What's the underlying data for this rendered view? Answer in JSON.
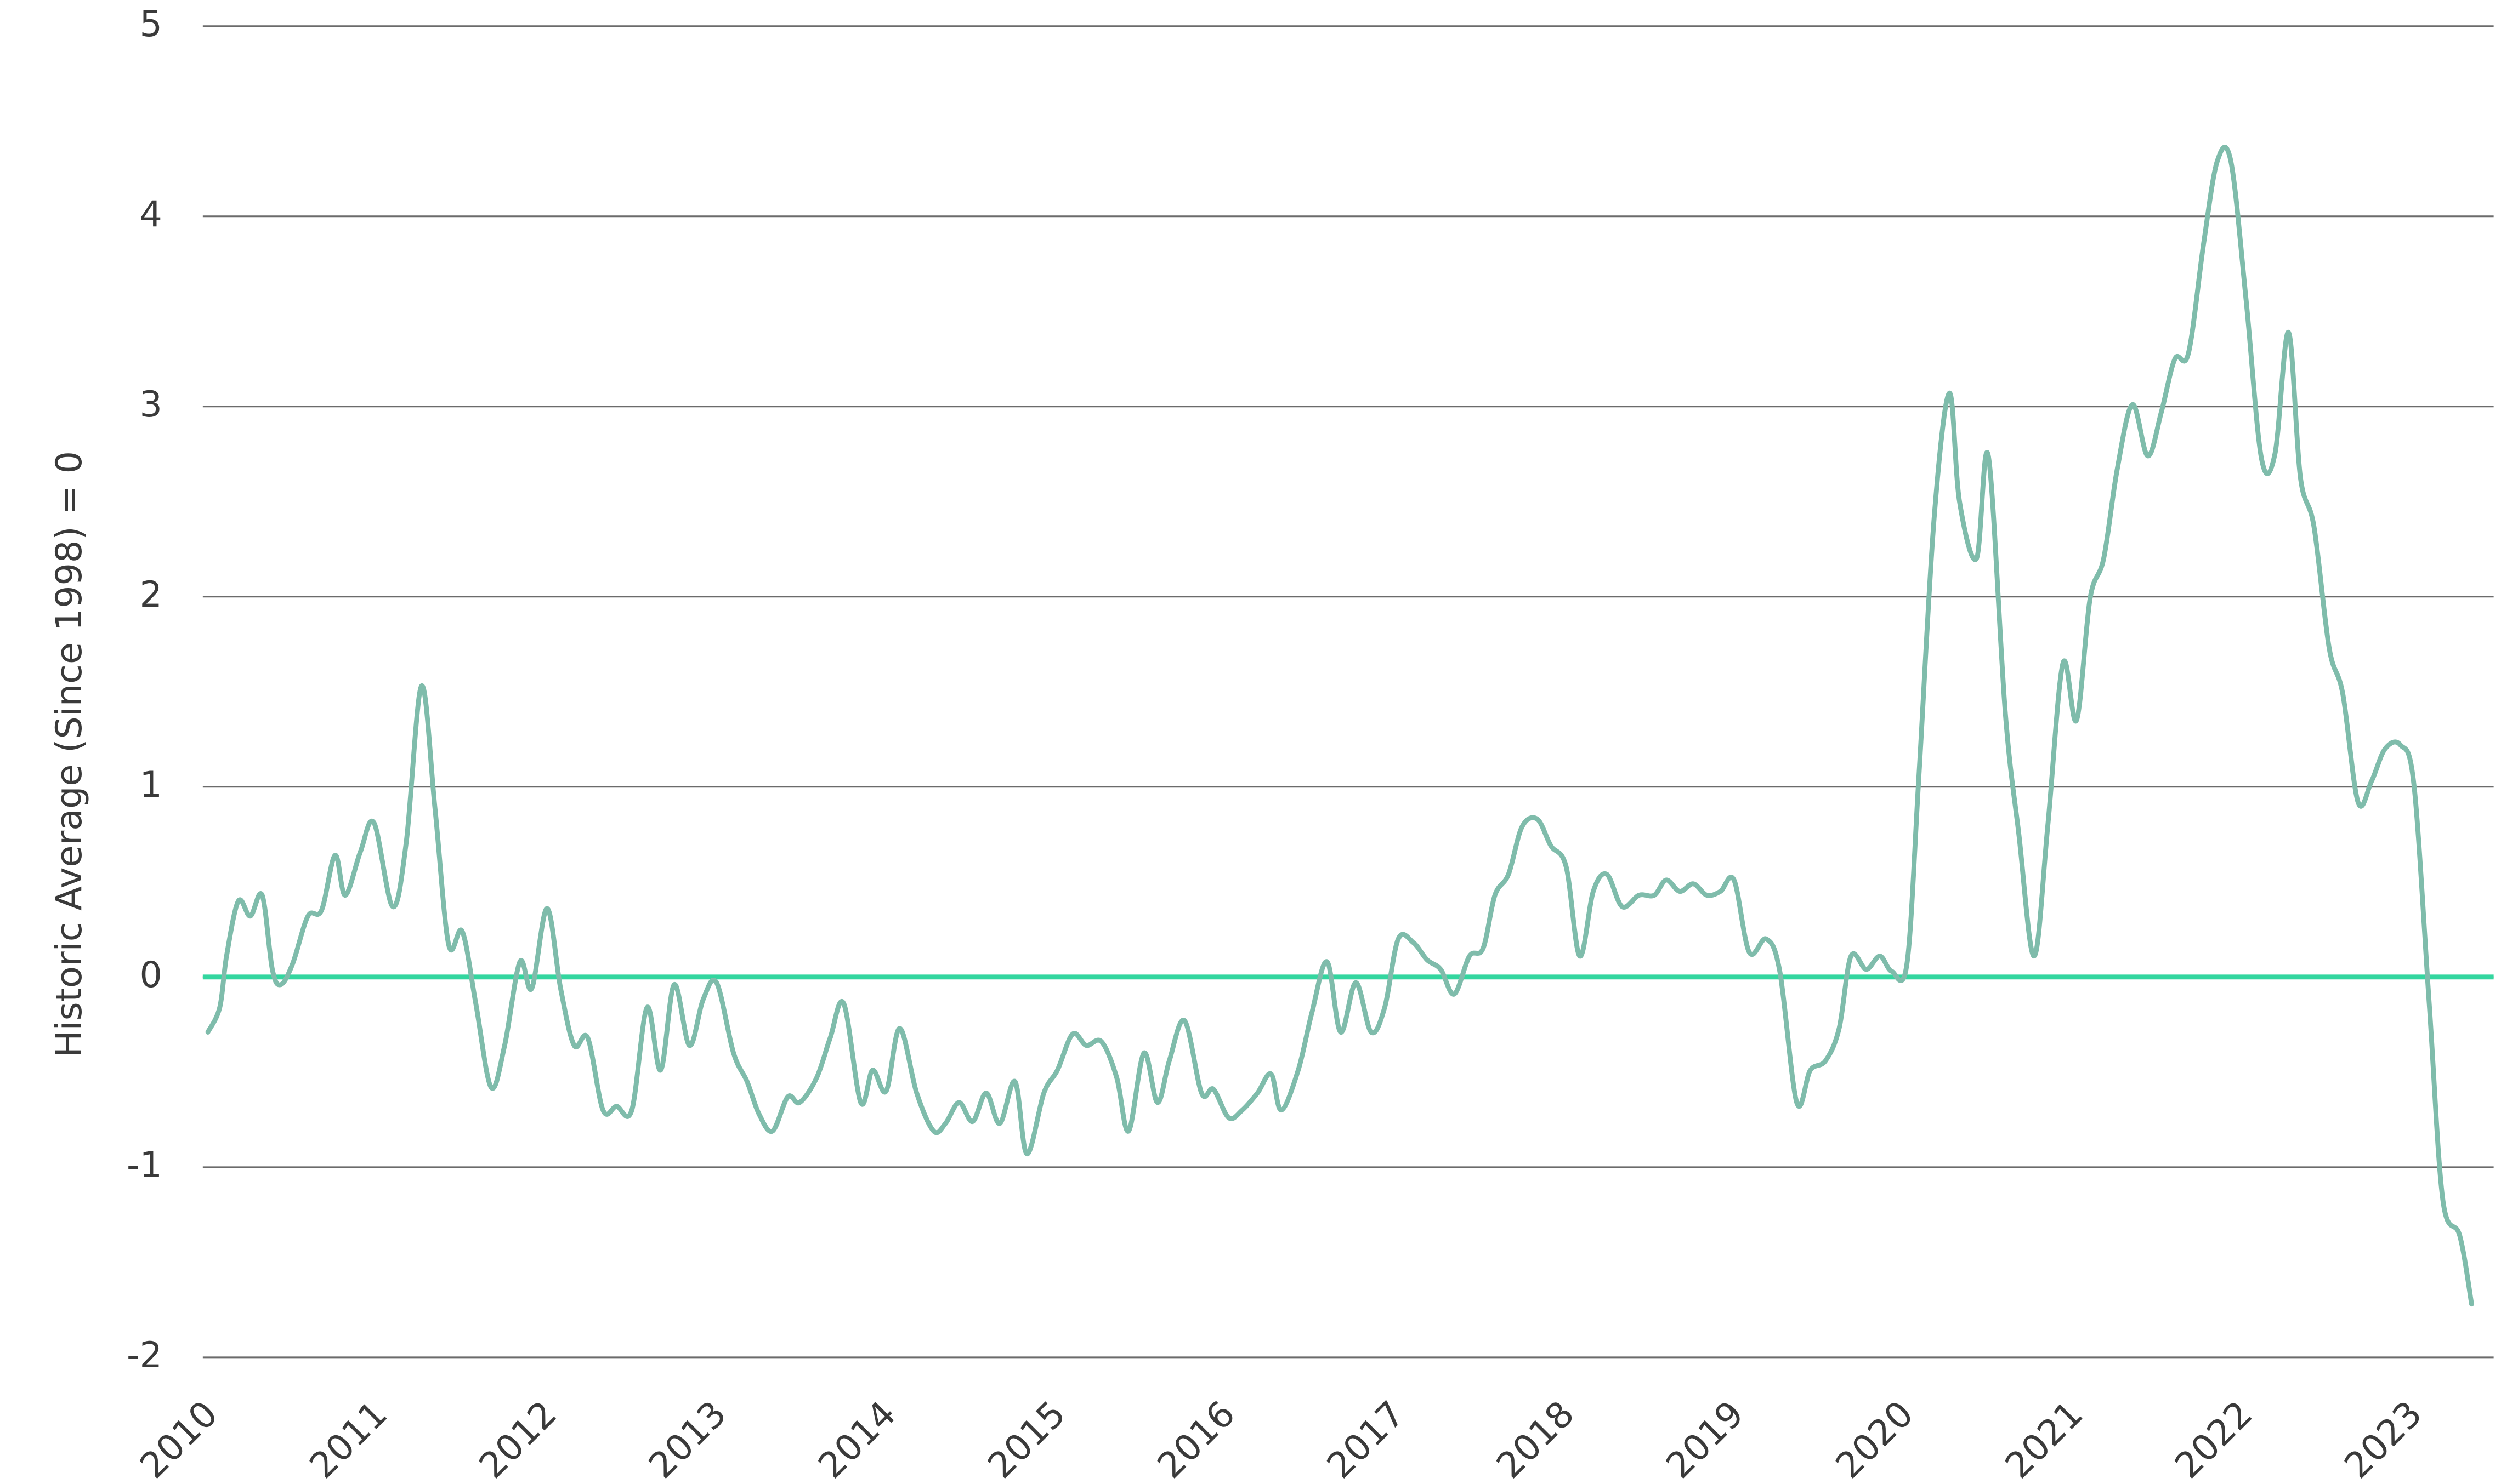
{
  "chart_data": {
    "type": "line",
    "y_label": "Historic Average (Since 1998) = 0",
    "x": [
      2010.03,
      2010.1,
      2010.14,
      2010.21,
      2010.28,
      2010.35,
      2010.41,
      2010.46,
      2010.53,
      2010.62,
      2010.7,
      2010.78,
      2010.84,
      2010.93,
      2011.01,
      2011.12,
      2011.2,
      2011.29,
      2011.37,
      2011.45,
      2011.53,
      2011.61,
      2011.7,
      2011.78,
      2011.87,
      2011.94,
      2012.03,
      2012.11,
      2012.19,
      2012.27,
      2012.36,
      2012.44,
      2012.53,
      2012.62,
      2012.7,
      2012.78,
      2012.87,
      2012.95,
      2013.03,
      2013.13,
      2013.21,
      2013.28,
      2013.36,
      2013.45,
      2013.52,
      2013.62,
      2013.7,
      2013.78,
      2013.88,
      2013.95,
      2014.03,
      2014.11,
      2014.21,
      2014.31,
      2014.38,
      2014.46,
      2014.54,
      2014.62,
      2014.7,
      2014.79,
      2014.86,
      2014.96,
      2015.04,
      2015.13,
      2015.21,
      2015.3,
      2015.39,
      2015.46,
      2015.55,
      2015.63,
      2015.7,
      2015.79,
      2015.89,
      2015.96,
      2016.05,
      2016.13,
      2016.22,
      2016.3,
      2016.36,
      2016.46,
      2016.54,
      2016.63,
      2016.71,
      2016.8,
      2016.89,
      2016.97,
      2017.05,
      2017.14,
      2017.22,
      2017.3,
      2017.38,
      2017.47,
      2017.55,
      2017.62,
      2017.7,
      2017.78,
      2017.87,
      2017.95,
      2018.04,
      2018.12,
      2018.2,
      2018.28,
      2018.37,
      2018.47,
      2018.56,
      2018.63,
      2018.71,
      2018.79,
      2018.87,
      2018.95,
      2019.03,
      2019.12,
      2019.22,
      2019.3,
      2019.4,
      2019.48,
      2019.57,
      2019.65,
      2019.72,
      2019.81,
      2019.89,
      2019.96,
      2020.05,
      2020.12,
      2020.21,
      2020.3,
      2020.36,
      2020.46,
      2020.53,
      2020.63,
      2020.71,
      2020.8,
      2020.88,
      2020.97,
      2021.05,
      2021.13,
      2021.21,
      2021.29,
      2021.38,
      2021.47,
      2021.55,
      2021.63,
      2021.71,
      2021.8,
      2021.88,
      2021.96,
      2022.05,
      2022.14,
      2022.22,
      2022.3,
      2022.37,
      2022.45,
      2022.54,
      2022.62,
      2022.71,
      2022.79,
      2022.87,
      2022.96,
      2023.04,
      2023.13,
      2023.21,
      2023.31,
      2023.38
    ],
    "values": [
      -0.29,
      -0.16,
      0.11,
      0.4,
      0.32,
      0.43,
      0.04,
      -0.04,
      0.07,
      0.32,
      0.35,
      0.64,
      0.43,
      0.66,
      0.81,
      0.37,
      0.71,
      1.53,
      0.88,
      0.17,
      0.24,
      -0.14,
      -0.58,
      -0.36,
      0.08,
      -0.06,
      0.36,
      -0.06,
      -0.36,
      -0.32,
      -0.7,
      -0.68,
      -0.7,
      -0.16,
      -0.49,
      -0.04,
      -0.36,
      -0.12,
      -0.03,
      -0.4,
      -0.55,
      -0.72,
      -0.81,
      -0.63,
      -0.66,
      -0.53,
      -0.32,
      -0.14,
      -0.66,
      -0.49,
      -0.6,
      -0.27,
      -0.61,
      -0.81,
      -0.77,
      -0.66,
      -0.76,
      -0.61,
      -0.77,
      -0.55,
      -0.93,
      -0.61,
      -0.49,
      -0.3,
      -0.36,
      -0.34,
      -0.53,
      -0.81,
      -0.4,
      -0.66,
      -0.44,
      -0.23,
      -0.61,
      -0.59,
      -0.74,
      -0.7,
      -0.61,
      -0.51,
      -0.7,
      -0.49,
      -0.19,
      0.08,
      -0.29,
      -0.03,
      -0.29,
      -0.16,
      0.2,
      0.18,
      0.09,
      0.04,
      -0.09,
      0.11,
      0.15,
      0.43,
      0.54,
      0.79,
      0.83,
      0.69,
      0.58,
      0.11,
      0.45,
      0.54,
      0.37,
      0.43,
      0.43,
      0.51,
      0.45,
      0.49,
      0.43,
      0.45,
      0.51,
      0.13,
      0.2,
      0.03,
      -0.66,
      -0.49,
      -0.44,
      -0.27,
      0.11,
      0.04,
      0.11,
      0.03,
      0.07,
      1.05,
      2.41,
      3.07,
      2.5,
      2.2,
      2.74,
      1.39,
      0.75,
      0.11,
      0.79,
      1.65,
      1.35,
      1.99,
      2.2,
      2.67,
      3.01,
      2.74,
      2.97,
      3.25,
      3.28,
      3.86,
      4.29,
      4.29,
      3.56,
      2.73,
      2.75,
      3.39,
      2.63,
      2.37,
      1.73,
      1.49,
      0.92,
      1.03,
      1.2,
      1.22,
      1.01,
      -0.14,
      -1.17,
      -1.36,
      -1.72
    ],
    "color": "#7fbcab",
    "xlim": [
      2010,
      2023.51
    ],
    "xticks": [
      2010,
      2011,
      2012,
      2013,
      2014,
      2015,
      2016,
      2017,
      2018,
      2019,
      2020,
      2021,
      2022,
      2023
    ],
    "ylim": [
      -2,
      5
    ],
    "yticks": [
      -2,
      -1,
      0,
      1,
      2,
      3,
      4,
      5
    ],
    "grid": true,
    "zero_line": {
      "value": 0,
      "color": "#33d69f"
    }
  }
}
